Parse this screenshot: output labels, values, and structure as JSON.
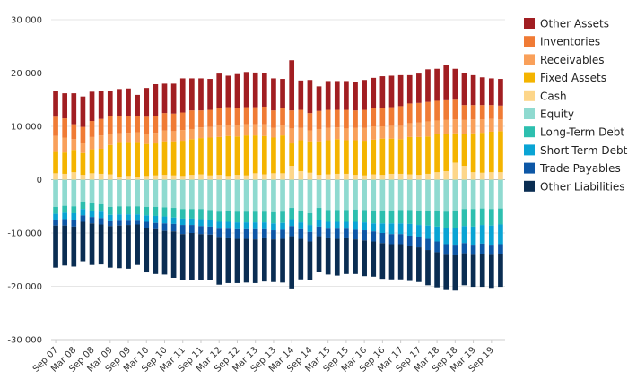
{
  "chart_data": {
    "type": "bar",
    "stacked": true,
    "title": "",
    "xlabel": "",
    "ylabel": "",
    "ylim": [
      -30000,
      30000
    ],
    "yticks": [
      30000,
      20000,
      10000,
      0,
      -10000,
      -20000,
      -30000
    ],
    "ytick_labels": [
      "30 000",
      "20 000",
      "10 000",
      "0",
      "-10 000",
      "-20 000",
      "-30 000"
    ],
    "grid": true,
    "legend_position": "right",
    "categories": [
      "Sep 07",
      "Dec 07",
      "Mar 08",
      "Jun 08",
      "Sep 08",
      "Dec 08",
      "Mar 09",
      "Jun 09",
      "Sep 09",
      "Dec 09",
      "Mar 10",
      "Jun 10",
      "Sep 10",
      "Dec 10",
      "Mar 11",
      "Jun 11",
      "Sep 11",
      "Dec 11",
      "Mar 12",
      "Jun 12",
      "Sep 12",
      "Dec 12",
      "Mar 13",
      "Jun 13",
      "Sep 13",
      "Dec 13",
      "Mar 14",
      "Jun 14",
      "Sep 14",
      "Dec 14",
      "Mar 15",
      "Jun 15",
      "Sep 15",
      "Dec 15",
      "Mar 16",
      "Jun 16",
      "Sep 16",
      "Dec 16",
      "Mar 17",
      "Jun 17",
      "Sep 17",
      "Dec 17",
      "Mar 18",
      "Jun 18",
      "Sep 18",
      "Dec 18",
      "Mar 19",
      "Jun 19",
      "Sep 19",
      "Dec 19"
    ],
    "x_tick_labels": [
      "Sep 07",
      "Mar 08",
      "Sep 08",
      "Mar 09",
      "Sep 09",
      "Mar 10",
      "Sep 10",
      "Mar 11",
      "Sep 11",
      "Mar 12",
      "Sep 12",
      "Mar 13",
      "Sep 13",
      "Mar 14",
      "Sep 14",
      "Mar 15",
      "Sep 15",
      "Mar 16",
      "Sep 16",
      "Mar 17",
      "Sep 17",
      "Mar 18",
      "Sep 18",
      "Mar 19",
      "Sep 19"
    ],
    "asset_series": [
      {
        "name": "Cash",
        "color": "#FDD68A",
        "values": [
          1200,
          1100,
          1400,
          900,
          1200,
          1100,
          1000,
          500,
          700,
          500,
          700,
          800,
          900,
          800,
          700,
          900,
          1000,
          800,
          900,
          700,
          900,
          800,
          1200,
          1000,
          1200,
          1200,
          2600,
          1600,
          1300,
          900,
          1000,
          1100,
          1100,
          900,
          800,
          1000,
          900,
          1100,
          1100,
          1000,
          900,
          1100,
          1400,
          1600,
          3200,
          2600,
          1400,
          1300,
          1400,
          1400
        ]
      },
      {
        "name": "Fixed Assets",
        "color": "#F4B400",
        "values": [
          4000,
          4000,
          4200,
          4100,
          4500,
          4700,
          5500,
          6400,
          6200,
          6400,
          6000,
          6000,
          6300,
          6400,
          6600,
          6700,
          6800,
          7100,
          7100,
          7500,
          7200,
          7500,
          7100,
          7200,
          6700,
          7100,
          4200,
          5800,
          5900,
          6300,
          6400,
          6500,
          6300,
          6500,
          6500,
          6500,
          6800,
          6600,
          6500,
          7000,
          7100,
          7000,
          7200,
          7000,
          5500,
          6000,
          7300,
          7500,
          7600,
          7700
        ]
      },
      {
        "name": "Equity",
        "color": "#8FDAD0",
        "values": []
      },
      {
        "name": "Receivables",
        "color": "#F9A05A",
        "values": [
          3000,
          2800,
          2000,
          1800,
          2300,
          2500,
          2100,
          1800,
          1900,
          2000,
          1900,
          2000,
          2000,
          1900,
          2000,
          1900,
          2000,
          2000,
          2200,
          2000,
          2200,
          2100,
          2100,
          2200,
          1800,
          1900,
          2800,
          2300,
          2000,
          2300,
          2300,
          2200,
          2200,
          2300,
          2400,
          2500,
          2300,
          2400,
          2500,
          2600,
          2700,
          2800,
          2500,
          2600,
          2600,
          2600,
          2600,
          2500,
          2400,
          2200
        ]
      },
      {
        "name": "Inventories",
        "color": "#F07B35",
        "values": [
          3600,
          3600,
          2800,
          3100,
          3000,
          3100,
          3300,
          3200,
          3200,
          3100,
          3200,
          3200,
          3300,
          3300,
          3300,
          3500,
          3200,
          3200,
          3200,
          3400,
          3200,
          3200,
          3200,
          3300,
          3300,
          3300,
          3400,
          3400,
          3300,
          3400,
          3400,
          3300,
          3500,
          3300,
          3400,
          3400,
          3400,
          3500,
          3700,
          3700,
          3700,
          3700,
          3700,
          3700,
          3700,
          2800,
          2700,
          2700,
          2600,
          2600
        ]
      },
      {
        "name": "Other Assets",
        "color": "#A11E22",
        "values": [
          4800,
          4700,
          5800,
          5700,
          5500,
          5300,
          4800,
          5100,
          5100,
          3900,
          5400,
          5900,
          5500,
          5600,
          6400,
          6000,
          6000,
          5800,
          6500,
          5900,
          6300,
          6600,
          6500,
          6300,
          6000,
          5400,
          9400,
          5500,
          6200,
          4600,
          5400,
          5400,
          5400,
          5300,
          5600,
          5700,
          6000,
          5900,
          5800,
          5300,
          5500,
          6100,
          6000,
          6600,
          5800,
          6000,
          5600,
          5200,
          5000,
          5000
        ]
      }
    ],
    "liability_series": [
      {
        "name": "Other Liabilities",
        "color": "#0A2D52",
        "values": [
          7900,
          7500,
          7500,
          7400,
          7800,
          7500,
          7800,
          8000,
          8200,
          7600,
          8300,
          8400,
          8200,
          8700,
          8600,
          8900,
          8600,
          8600,
          8800,
          8400,
          8300,
          8200,
          8200,
          8100,
          8000,
          8200,
          9800,
          7600,
          7300,
          6700,
          6800,
          6900,
          6700,
          6500,
          6700,
          6600,
          6700,
          6600,
          6600,
          6500,
          6500,
          6600,
          6600,
          6600,
          6600,
          6000,
          6000,
          6200,
          6200,
          6200
        ]
      },
      {
        "name": "Trade Payables",
        "color": "#0D57A6",
        "values": [
          1000,
          1200,
          1200,
          1200,
          1200,
          1200,
          900,
          900,
          800,
          700,
          1200,
          1200,
          1400,
          1400,
          1700,
          1500,
          1500,
          1500,
          1700,
          1800,
          1800,
          1800,
          1900,
          1700,
          1700,
          1700,
          1900,
          1800,
          1800,
          1800,
          1800,
          1900,
          1800,
          1800,
          1900,
          1900,
          1900,
          1900,
          1900,
          2000,
          1900,
          2100,
          2000,
          2000,
          2000,
          1900,
          1900,
          1900,
          1900,
          1800
        ]
      },
      {
        "name": "Short-Term Debt",
        "color": "#0AA4D4",
        "values": [
          1200,
          1200,
          1300,
          1200,
          1200,
          1200,
          1200,
          1200,
          1200,
          1200,
          1200,
          1300,
          1300,
          1200,
          1200,
          1200,
          1300,
          1200,
          1300,
          1300,
          1300,
          1300,
          1300,
          1300,
          1300,
          1300,
          1300,
          1300,
          1300,
          1300,
          1300,
          1300,
          1300,
          1500,
          1500,
          1500,
          1800,
          2000,
          2000,
          2200,
          2300,
          2500,
          2800,
          3000,
          3200,
          3200,
          3400,
          3500,
          3600,
          3700
        ]
      },
      {
        "name": "Long-Term Debt",
        "color": "#2DBFAF",
        "values": [
          1300,
          1300,
          1300,
          1400,
          1400,
          1400,
          1500,
          1500,
          1500,
          1500,
          1600,
          1700,
          1700,
          1800,
          1800,
          1800,
          1900,
          1900,
          1900,
          2000,
          2000,
          2000,
          2000,
          2000,
          2100,
          2100,
          2100,
          2200,
          2200,
          2200,
          2200,
          2200,
          2200,
          2300,
          2300,
          2400,
          2400,
          2400,
          2500,
          2600,
          2700,
          2800,
          2900,
          3100,
          3200,
          3200,
          3300,
          3100,
          3100,
          3000
        ]
      },
      {
        "name": "Equity",
        "color": "#8FDAD0",
        "values": [
          5100,
          4900,
          5000,
          4100,
          4400,
          4600,
          5100,
          5000,
          5000,
          5000,
          5100,
          5100,
          5200,
          5300,
          5500,
          5500,
          5500,
          5700,
          6000,
          5900,
          6000,
          6000,
          6000,
          6000,
          6100,
          6000,
          5300,
          5800,
          6300,
          5300,
          5700,
          5700,
          5700,
          5600,
          5700,
          5800,
          5800,
          5800,
          5700,
          5700,
          5800,
          5800,
          5900,
          6000,
          5800,
          5500,
          5500,
          5400,
          5500,
          5400
        ]
      }
    ],
    "legend": [
      {
        "name": "Other Assets",
        "color": "#A11E22"
      },
      {
        "name": "Inventories",
        "color": "#F07B35"
      },
      {
        "name": "Receivables",
        "color": "#F9A05A"
      },
      {
        "name": "Fixed Assets",
        "color": "#F4B400"
      },
      {
        "name": "Cash",
        "color": "#FDD68A"
      },
      {
        "name": "Equity",
        "color": "#8FDAD0"
      },
      {
        "name": "Long-Term Debt",
        "color": "#2DBFAF"
      },
      {
        "name": "Short-Term Debt",
        "color": "#0AA4D4"
      },
      {
        "name": "Trade Payables",
        "color": "#0D57A6"
      },
      {
        "name": "Other Liabilities",
        "color": "#0A2D52"
      }
    ],
    "colors": {
      "grid": "#e6e6e6",
      "axis": "#cccccc",
      "zero_line": "#bdbdbd",
      "tick_text": "#333333"
    }
  }
}
